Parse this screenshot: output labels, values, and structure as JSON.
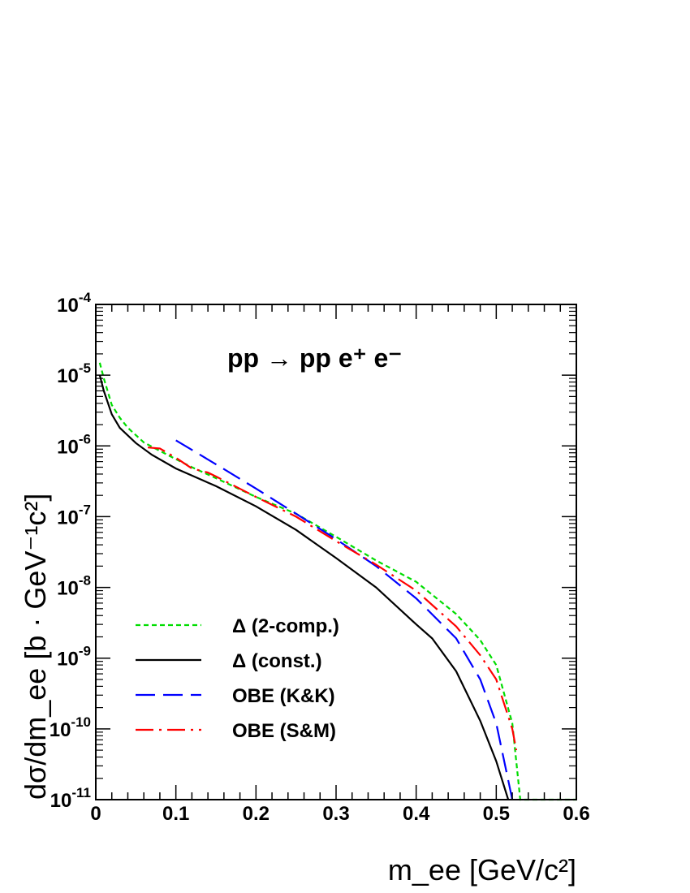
{
  "chart_data": {
    "type": "line",
    "title": "",
    "annotation": "pp → pp e⁺ e⁻",
    "xlabel": "m_ee [GeV/c²]",
    "ylabel": "dσ/dm_ee [b · GeV⁻¹c²]",
    "xlim": [
      0,
      0.6
    ],
    "ylim": [
      1e-11,
      0.0001
    ],
    "y_scale": "log",
    "grid": false,
    "legend_position": "bottom-left",
    "x_ticks": [
      "0",
      "0.1",
      "0.2",
      "0.3",
      "0.4",
      "0.5",
      "0.6"
    ],
    "y_ticks": [
      "10-11",
      "10-10",
      "10-9",
      "10-8",
      "10-7",
      "10-6",
      "10-5",
      "10-4"
    ],
    "series": [
      {
        "name": "Δ (2-comp.)",
        "color": "#00dd00",
        "style": "dotted",
        "points": [
          [
            0.005,
            1.5e-05
          ],
          [
            0.01,
            9e-06
          ],
          [
            0.02,
            3.8e-06
          ],
          [
            0.03,
            2.5e-06
          ],
          [
            0.04,
            1.8e-06
          ],
          [
            0.06,
            1.12e-06
          ],
          [
            0.08,
            8.5e-07
          ],
          [
            0.1,
            6.5e-07
          ],
          [
            0.12,
            5e-07
          ],
          [
            0.15,
            3.5e-07
          ],
          [
            0.2,
            1.9e-07
          ],
          [
            0.25,
            1.1e-07
          ],
          [
            0.3,
            5.2e-08
          ],
          [
            0.35,
            2.4e-08
          ],
          [
            0.4,
            1.2e-08
          ],
          [
            0.45,
            4.2e-09
          ],
          [
            0.48,
            1.8e-09
          ],
          [
            0.5,
            8e-10
          ],
          [
            0.52,
            1.2e-10
          ],
          [
            0.53,
            1e-11
          ],
          [
            0.6,
            1e-11
          ]
        ]
      },
      {
        "name": "Δ (const.)",
        "color": "#000000",
        "style": "solid",
        "points": [
          [
            0.005,
            1e-05
          ],
          [
            0.01,
            6e-06
          ],
          [
            0.02,
            2.8e-06
          ],
          [
            0.03,
            1.8e-06
          ],
          [
            0.05,
            1.1e-06
          ],
          [
            0.07,
            7.5e-07
          ],
          [
            0.1,
            4.8e-07
          ],
          [
            0.15,
            2.7e-07
          ],
          [
            0.2,
            1.4e-07
          ],
          [
            0.25,
            6.5e-08
          ],
          [
            0.3,
            2.6e-08
          ],
          [
            0.35,
            1e-08
          ],
          [
            0.4,
            3e-09
          ],
          [
            0.42,
            1.9e-09
          ],
          [
            0.45,
            6.5e-10
          ],
          [
            0.48,
            1.3e-10
          ],
          [
            0.5,
            3.5e-11
          ],
          [
            0.515,
            1e-11
          ]
        ]
      },
      {
        "name": "OBE (K&K)",
        "color": "#0000ff",
        "style": "long-dash",
        "points": [
          [
            0.1,
            1.2e-06
          ],
          [
            0.15,
            5.5e-07
          ],
          [
            0.2,
            2.5e-07
          ],
          [
            0.25,
            1.1e-07
          ],
          [
            0.3,
            4.8e-08
          ],
          [
            0.35,
            2e-08
          ],
          [
            0.4,
            7e-09
          ],
          [
            0.45,
            1.9e-09
          ],
          [
            0.48,
            5e-10
          ],
          [
            0.5,
            1.2e-10
          ],
          [
            0.52,
            1e-11
          ]
        ]
      },
      {
        "name": "OBE (S&M)",
        "color": "#ff0000",
        "style": "dash-dot",
        "points": [
          [
            0.065,
            9.5e-07
          ],
          [
            0.08,
            9.2e-07
          ],
          [
            0.1,
            6.8e-07
          ],
          [
            0.12,
            4.8e-07
          ],
          [
            0.14,
            4.2e-07
          ],
          [
            0.15,
            3.7e-07
          ],
          [
            0.2,
            1.9e-07
          ],
          [
            0.25,
            1e-07
          ],
          [
            0.3,
            4.5e-08
          ],
          [
            0.35,
            2.1e-08
          ],
          [
            0.4,
            9e-09
          ],
          [
            0.45,
            2.8e-09
          ],
          [
            0.48,
            1.1e-09
          ],
          [
            0.5,
            5e-10
          ],
          [
            0.52,
            1e-10
          ],
          [
            0.525,
            5e-11
          ]
        ]
      }
    ]
  }
}
